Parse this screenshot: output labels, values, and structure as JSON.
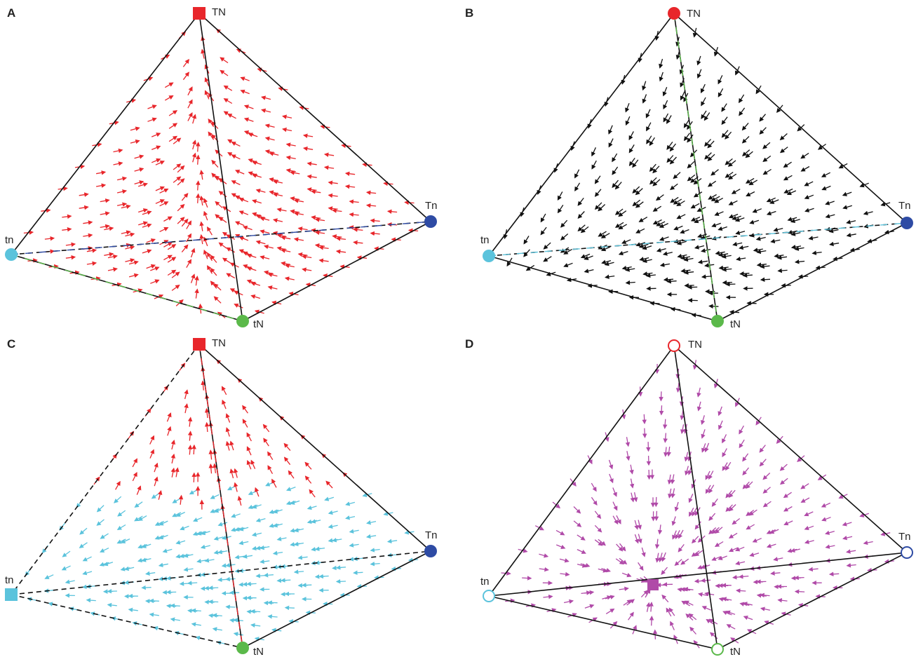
{
  "panels": [
    {
      "label": "A",
      "vertices": {
        "top": "TN",
        "left": "tn",
        "right": "Tn",
        "bottom": "tN"
      },
      "colors": {
        "top": "#e8262b",
        "left": "#5bc3dc",
        "right": "#2e4ba4",
        "bottom": "#5bb94a"
      },
      "markers": {
        "top": "square",
        "left": "circle",
        "right": "circle",
        "bottom": "circle"
      },
      "arrow_color": "#e8262b",
      "field": "toward-top"
    },
    {
      "label": "B",
      "vertices": {
        "top": "TN",
        "left": "tn",
        "right": "Tn",
        "bottom": "tN"
      },
      "colors": {
        "top": "#e8262b",
        "left": "#5bc3dc",
        "right": "#2e4ba4",
        "bottom": "#5bb94a"
      },
      "markers": {
        "top": "circle",
        "left": "circle",
        "right": "circle",
        "bottom": "circle"
      },
      "arrow_color": "#111111",
      "field": "toward-left"
    },
    {
      "label": "C",
      "vertices": {
        "top": "TN",
        "left": "tn",
        "right": "Tn",
        "bottom": "tN"
      },
      "colors": {
        "top": "#e8262b",
        "left": "#5bc3dc",
        "right": "#2e4ba4",
        "bottom": "#5bb94a"
      },
      "markers": {
        "top": "square",
        "left": "square",
        "right": "circle",
        "bottom": "circle"
      },
      "arrow_color": "#e8262b",
      "arrow_color_2": "#5bc3dc",
      "field": "split"
    },
    {
      "label": "D",
      "vertices": {
        "top": "TN",
        "left": "tn",
        "right": "Tn",
        "bottom": "tN"
      },
      "colors": {
        "top": "#e8262b",
        "left": "#5bc3dc",
        "right": "#2e4ba4",
        "bottom": "#5bb94a"
      },
      "markers": {
        "top": "open-circle",
        "left": "open-circle",
        "right": "open-circle",
        "bottom": "open-circle"
      },
      "arrow_color": "#b04aa8",
      "center_marker": "square",
      "field": "toward-center"
    }
  ]
}
